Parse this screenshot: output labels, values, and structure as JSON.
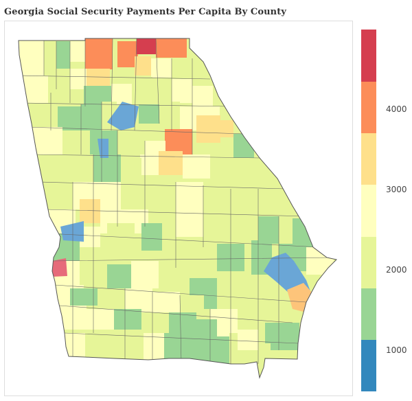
{
  "title": "Georgia Social Security Payments Per Capita By County",
  "legend": {
    "bands": [
      {
        "color": "#3288bd"
      },
      {
        "color": "#99d594"
      },
      {
        "color": "#e6f598"
      },
      {
        "color": "#ffffbf"
      },
      {
        "color": "#fee08b"
      },
      {
        "color": "#fc8d59"
      },
      {
        "color": "#d53e4f"
      }
    ],
    "ticks": [
      {
        "label": "1000",
        "value": 1000
      },
      {
        "label": "2000",
        "value": 2000
      },
      {
        "label": "3000",
        "value": 3000
      },
      {
        "label": "4000",
        "value": 4000
      }
    ],
    "range": [
      500,
      5000
    ]
  },
  "colors": {
    "border": "#555555",
    "state_outline": "#555555",
    "frame": "#dddddd"
  }
}
